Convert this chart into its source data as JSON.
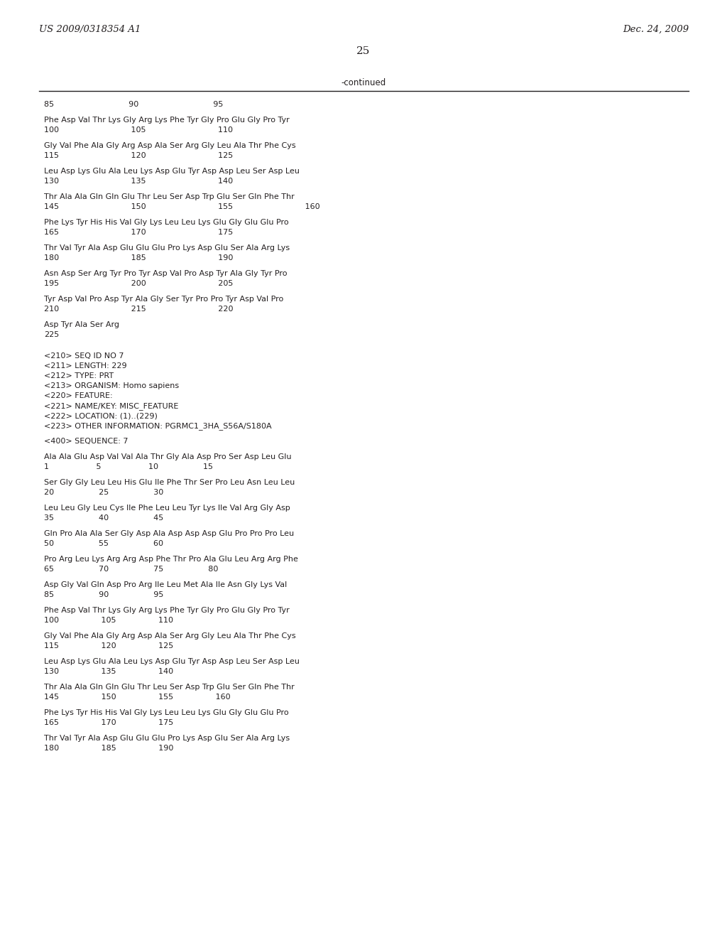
{
  "header_left": "US 2009/0318354 A1",
  "header_right": "Dec. 24, 2009",
  "page_number": "25",
  "continued_label": "-continued",
  "background_color": "#ffffff",
  "text_color": "#231f20",
  "content": [
    {
      "type": "ruler",
      "text": "85                              90                              95"
    },
    {
      "type": "blank"
    },
    {
      "type": "seq",
      "text": "Phe Asp Val Thr Lys Gly Arg Lys Phe Tyr Gly Pro Glu Gly Pro Tyr"
    },
    {
      "type": "num",
      "text": "100                             105                             110"
    },
    {
      "type": "blank"
    },
    {
      "type": "seq",
      "text": "Gly Val Phe Ala Gly Arg Asp Ala Ser Arg Gly Leu Ala Thr Phe Cys"
    },
    {
      "type": "num",
      "text": "115                             120                             125"
    },
    {
      "type": "blank"
    },
    {
      "type": "seq",
      "text": "Leu Asp Lys Glu Ala Leu Lys Asp Glu Tyr Asp Asp Leu Ser Asp Leu"
    },
    {
      "type": "num",
      "text": "130                             135                             140"
    },
    {
      "type": "blank"
    },
    {
      "type": "seq",
      "text": "Thr Ala Ala Gln Gln Glu Thr Leu Ser Asp Trp Glu Ser Gln Phe Thr"
    },
    {
      "type": "num",
      "text": "145                             150                             155                             160"
    },
    {
      "type": "blank"
    },
    {
      "type": "seq",
      "text": "Phe Lys Tyr His His Val Gly Lys Leu Leu Lys Glu Gly Glu Glu Pro"
    },
    {
      "type": "num",
      "text": "165                             170                             175"
    },
    {
      "type": "blank"
    },
    {
      "type": "seq",
      "text": "Thr Val Tyr Ala Asp Glu Glu Glu Pro Lys Asp Glu Ser Ala Arg Lys"
    },
    {
      "type": "num",
      "text": "180                             185                             190"
    },
    {
      "type": "blank"
    },
    {
      "type": "seq",
      "text": "Asn Asp Ser Arg Tyr Pro Tyr Asp Val Pro Asp Tyr Ala Gly Tyr Pro"
    },
    {
      "type": "num",
      "text": "195                             200                             205"
    },
    {
      "type": "blank"
    },
    {
      "type": "seq",
      "text": "Tyr Asp Val Pro Asp Tyr Ala Gly Ser Tyr Pro Pro Tyr Asp Val Pro"
    },
    {
      "type": "num",
      "text": "210                             215                             220"
    },
    {
      "type": "blank"
    },
    {
      "type": "seq",
      "text": "Asp Tyr Ala Ser Arg"
    },
    {
      "type": "num",
      "text": "225"
    },
    {
      "type": "blank"
    },
    {
      "type": "blank"
    },
    {
      "type": "meta",
      "text": "<210> SEQ ID NO 7"
    },
    {
      "type": "meta",
      "text": "<211> LENGTH: 229"
    },
    {
      "type": "meta",
      "text": "<212> TYPE: PRT"
    },
    {
      "type": "meta",
      "text": "<213> ORGANISM: Homo sapiens"
    },
    {
      "type": "meta",
      "text": "<220> FEATURE:"
    },
    {
      "type": "meta",
      "text": "<221> NAME/KEY: MISC_FEATURE"
    },
    {
      "type": "meta",
      "text": "<222> LOCATION: (1)..(229)"
    },
    {
      "type": "meta",
      "text": "<223> OTHER INFORMATION: PGRMC1_3HA_S56A/S180A"
    },
    {
      "type": "blank"
    },
    {
      "type": "meta",
      "text": "<400> SEQUENCE: 7"
    },
    {
      "type": "blank"
    },
    {
      "type": "seq",
      "text": "Ala Ala Glu Asp Val Val Ala Thr Gly Ala Asp Pro Ser Asp Leu Glu"
    },
    {
      "type": "num",
      "text": "1                   5                   10                  15"
    },
    {
      "type": "blank"
    },
    {
      "type": "seq",
      "text": "Ser Gly Gly Leu Leu His Glu Ile Phe Thr Ser Pro Leu Asn Leu Leu"
    },
    {
      "type": "num",
      "text": "20                  25                  30"
    },
    {
      "type": "blank"
    },
    {
      "type": "seq",
      "text": "Leu Leu Gly Leu Cys Ile Phe Leu Leu Tyr Lys Ile Val Arg Gly Asp"
    },
    {
      "type": "num",
      "text": "35                  40                  45"
    },
    {
      "type": "blank"
    },
    {
      "type": "seq",
      "text": "Gln Pro Ala Ala Ser Gly Asp Ala Asp Asp Asp Glu Pro Pro Pro Leu"
    },
    {
      "type": "num",
      "text": "50                  55                  60"
    },
    {
      "type": "blank"
    },
    {
      "type": "seq",
      "text": "Pro Arg Leu Lys Arg Arg Asp Phe Thr Pro Ala Glu Leu Arg Arg Phe"
    },
    {
      "type": "num",
      "text": "65                  70                  75                  80"
    },
    {
      "type": "blank"
    },
    {
      "type": "seq",
      "text": "Asp Gly Val Gln Asp Pro Arg Ile Leu Met Ala Ile Asn Gly Lys Val"
    },
    {
      "type": "num",
      "text": "85                  90                  95"
    },
    {
      "type": "blank"
    },
    {
      "type": "seq",
      "text": "Phe Asp Val Thr Lys Gly Arg Lys Phe Tyr Gly Pro Glu Gly Pro Tyr"
    },
    {
      "type": "num",
      "text": "100                 105                 110"
    },
    {
      "type": "blank"
    },
    {
      "type": "seq",
      "text": "Gly Val Phe Ala Gly Arg Asp Ala Ser Arg Gly Leu Ala Thr Phe Cys"
    },
    {
      "type": "num",
      "text": "115                 120                 125"
    },
    {
      "type": "blank"
    },
    {
      "type": "seq",
      "text": "Leu Asp Lys Glu Ala Leu Lys Asp Glu Tyr Asp Asp Leu Ser Asp Leu"
    },
    {
      "type": "num",
      "text": "130                 135                 140"
    },
    {
      "type": "blank"
    },
    {
      "type": "seq",
      "text": "Thr Ala Ala Gln Gln Glu Thr Leu Ser Asp Trp Glu Ser Gln Phe Thr"
    },
    {
      "type": "num",
      "text": "145                 150                 155                 160"
    },
    {
      "type": "blank"
    },
    {
      "type": "seq",
      "text": "Phe Lys Tyr His His Val Gly Lys Leu Leu Lys Glu Gly Glu Glu Pro"
    },
    {
      "type": "num",
      "text": "165                 170                 175"
    },
    {
      "type": "blank"
    },
    {
      "type": "seq",
      "text": "Thr Val Tyr Ala Asp Glu Glu Glu Pro Lys Asp Glu Ser Ala Arg Lys"
    },
    {
      "type": "num",
      "text": "180                 185                 190"
    }
  ]
}
